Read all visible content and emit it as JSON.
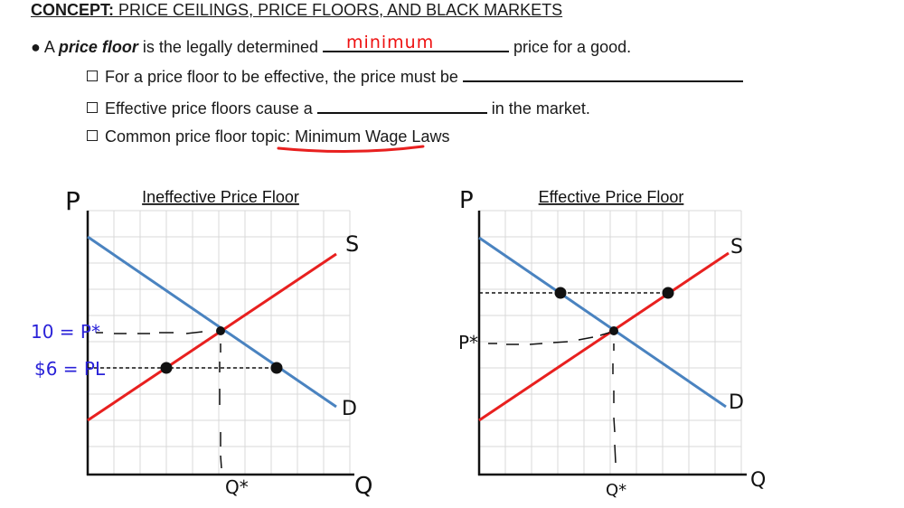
{
  "title": {
    "concept": "CONCEPT:",
    "topic": "PRICE CEILINGS, PRICE FLOORS, AND BLACK MARKETS"
  },
  "bullets": {
    "b1_pre": "A ",
    "b1_term": "price floor",
    "b1_mid": " is the legally determined ",
    "b1_answer": "minimum",
    "b1_post": " price for a good.",
    "b2": "For a price floor to be effective, the price must be ",
    "b3_pre": "Effective price floors cause a ",
    "b3_post": " in the market.",
    "b4_pre": "Common price floor topic: ",
    "b4_term": "Minimum Wage Laws"
  },
  "left_graph": {
    "title": "Ineffective Price Floor",
    "y_axis": "P",
    "x_axis": "Q",
    "supply": "S",
    "demand": "D",
    "price_eq_label": "10 = P*",
    "price_floor_label": "$6 = PL",
    "q_eq_label": "Q*"
  },
  "right_graph": {
    "title": "Effective Price Floor",
    "y_axis": "P",
    "x_axis": "Q",
    "supply": "S",
    "demand": "D",
    "price_eq_label": "P*",
    "q_eq_label": "Q*"
  },
  "colors": {
    "supply": "#e8201f",
    "demand": "#4a83c0",
    "annotation_blue": "#2a22d8",
    "annotation_red": "#e8201f",
    "grid": "#d9d9d9"
  }
}
